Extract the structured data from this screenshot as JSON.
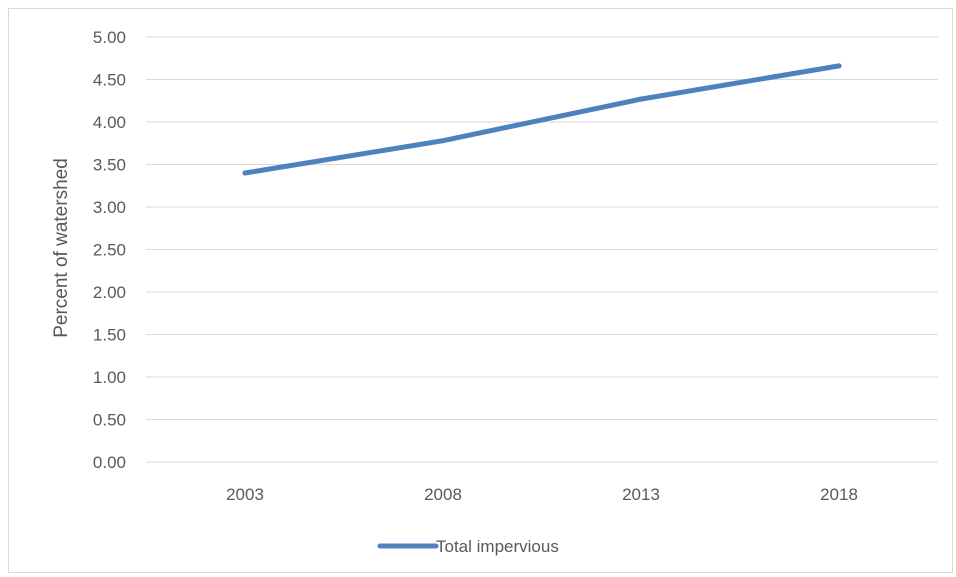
{
  "chart_data": {
    "type": "line",
    "title": "",
    "ylabel": "Percent of watershed",
    "xlabel": "",
    "categories": [
      "2003",
      "2008",
      "2013",
      "2018"
    ],
    "series": [
      {
        "name": "Total impervious",
        "values": [
          3.4,
          3.78,
          4.27,
          4.66
        ],
        "color": "#4f81bd"
      }
    ],
    "ylim": [
      0,
      5
    ],
    "y_ticks": [
      "0.00",
      "0.50",
      "1.00",
      "1.50",
      "2.00",
      "2.50",
      "3.00",
      "3.50",
      "4.00",
      "4.50",
      "5.00"
    ],
    "grid": "horizontal",
    "legend_position": "bottom",
    "gridline_color": "#d9d9d9",
    "text_color": "#595959"
  }
}
